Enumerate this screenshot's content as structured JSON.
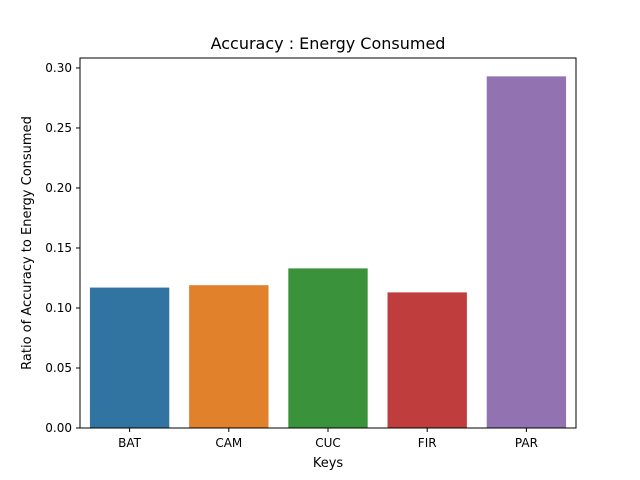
{
  "chart_data": {
    "type": "bar",
    "title": "Accuracy : Energy Consumed",
    "xlabel": "Keys",
    "ylabel": "Ratio of Accuracy to Energy Consumed",
    "categories": [
      "BAT",
      "CAM",
      "CUC",
      "FIR",
      "PAR"
    ],
    "values": [
      0.117,
      0.119,
      0.133,
      0.113,
      0.293
    ],
    "colors": [
      "#3274a1",
      "#e1812c",
      "#3a923a",
      "#c03d3e",
      "#9372b2"
    ],
    "ylim": [
      0,
      0.3083
    ],
    "yticks": [
      0.0,
      0.05,
      0.1,
      0.15,
      0.2,
      0.25,
      0.3
    ],
    "ytick_labels": [
      "0.00",
      "0.05",
      "0.10",
      "0.15",
      "0.20",
      "0.25",
      "0.30"
    ],
    "grid": false,
    "legend": "none"
  }
}
